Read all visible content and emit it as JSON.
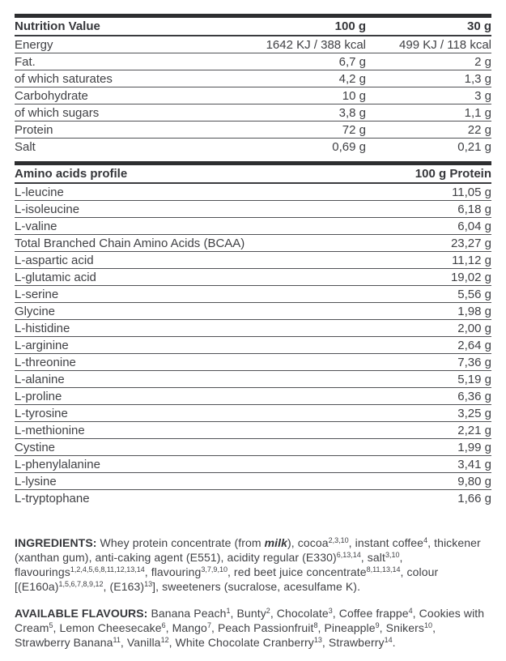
{
  "colors": {
    "background": "#ffffff",
    "text": "#404145",
    "bold_text": "#36373b",
    "thick_bar": "#2d2e30",
    "row_line": "#515256",
    "header_line": "#3a3b3f"
  },
  "nutrition_table": {
    "header": {
      "label": "Nutrition Value",
      "col_100g": "100 g",
      "col_30g": "30 g"
    },
    "rows": [
      {
        "label": "Energy",
        "v100": "1642 KJ / 388 kcal",
        "v30": "499 KJ / 118 kcal"
      },
      {
        "label": "Fat.",
        "v100": "6,7 g",
        "v30": "2 g"
      },
      {
        "label": "of which saturates",
        "v100": "4,2 g",
        "v30": "1,3 g"
      },
      {
        "label": "Carbohydrate",
        "v100": "10 g",
        "v30": "3 g"
      },
      {
        "label": "of which sugars",
        "v100": "3,8 g",
        "v30": "1,1 g"
      },
      {
        "label": "Protein",
        "v100": "72 g",
        "v30": "22 g"
      },
      {
        "label": "Salt",
        "v100": "0,69 g",
        "v30": "0,21 g"
      }
    ]
  },
  "amino_table": {
    "header": {
      "label": "Amino acids profile",
      "col_value": "100 g Protein"
    },
    "rows": [
      {
        "label": "L-leucine",
        "value": "11,05 g"
      },
      {
        "label": "L-isoleucine",
        "value": "6,18 g"
      },
      {
        "label": "L-valine",
        "value": "6,04 g"
      },
      {
        "label": "Total Branched Chain Amino Acids (BCAA)",
        "value": "23,27 g"
      },
      {
        "label": "L-aspartic acid",
        "value": "11,12 g"
      },
      {
        "label": "L-glutamic acid",
        "value": "19,02 g"
      },
      {
        "label": "L-serine",
        "value": "5,56 g"
      },
      {
        "label": "Glycine",
        "value": "1,98 g"
      },
      {
        "label": "L-histidine",
        "value": "2,00 g"
      },
      {
        "label": "L-arginine",
        "value": "2,64 g"
      },
      {
        "label": "L-threonine",
        "value": "7,36 g"
      },
      {
        "label": "L-alanine",
        "value": "5,19 g"
      },
      {
        "label": "L-proline",
        "value": "6,36 g"
      },
      {
        "label": "L-tyrosine",
        "value": "3,25 g"
      },
      {
        "label": "L-methionine",
        "value": "2,21 g"
      },
      {
        "label": "Cystine",
        "value": "1,99 g"
      },
      {
        "label": "L-phenylalanine",
        "value": "3,41 g"
      },
      {
        "label": "L-lysine",
        "value": "9,80 g"
      },
      {
        "label": "L-tryptophane",
        "value": "1,66 g"
      }
    ]
  },
  "ingredients": {
    "segments": [
      {
        "text": "INGREDIENTS: ",
        "bold": true
      },
      {
        "text": "Whey protein concentrate (from "
      },
      {
        "text": "milk",
        "bold": true,
        "italic": true
      },
      {
        "text": "), cocoa"
      },
      {
        "sup": "2,3,10"
      },
      {
        "text": ", instant coffee"
      },
      {
        "sup": "4"
      },
      {
        "text": ", thickener (xanthan gum), anti-caking agent (E551), acidity regular (E330)"
      },
      {
        "sup": "6,13,14"
      },
      {
        "text": ", salt"
      },
      {
        "sup": "3,10"
      },
      {
        "text": ", flavourings"
      },
      {
        "sup": "1,2,4,5,6,8,11,12,13,14"
      },
      {
        "text": ", flavouring"
      },
      {
        "sup": "3,7,9,10"
      },
      {
        "text": ", red beet juice concentrate"
      },
      {
        "sup": "8,11,13,14"
      },
      {
        "text": ", colour [(E160a)"
      },
      {
        "sup": "1,5,6,7,8,9,12"
      },
      {
        "text": ", (E163)"
      },
      {
        "sup": "13"
      },
      {
        "text": "], sweeteners (sucralose, acesulfame K)."
      }
    ]
  },
  "flavours": {
    "segments": [
      {
        "text": "AVAILABLE FLAVOURS: ",
        "bold": true
      },
      {
        "text": "Banana Peach"
      },
      {
        "sup": "1"
      },
      {
        "text": ", Bunty"
      },
      {
        "sup": "2"
      },
      {
        "text": ", Chocolate"
      },
      {
        "sup": "3"
      },
      {
        "text": ", Coffee frappe"
      },
      {
        "sup": "4"
      },
      {
        "text": ", Cookies with Cream"
      },
      {
        "sup": "5"
      },
      {
        "text": ", Lemon Cheesecake"
      },
      {
        "sup": "6"
      },
      {
        "text": ", Mango"
      },
      {
        "sup": "7"
      },
      {
        "text": ", Peach Passionfruit"
      },
      {
        "sup": "8"
      },
      {
        "text": ", Pineapple"
      },
      {
        "sup": "9"
      },
      {
        "text": ", Snikers"
      },
      {
        "sup": "10"
      },
      {
        "text": ", Strawberry Banana"
      },
      {
        "sup": "11"
      },
      {
        "text": ", Vanilla"
      },
      {
        "sup": "12"
      },
      {
        "text": ", White Chocolate Cranberry"
      },
      {
        "sup": "13"
      },
      {
        "text": ", Strawberry"
      },
      {
        "sup": "14"
      },
      {
        "text": "."
      }
    ]
  }
}
